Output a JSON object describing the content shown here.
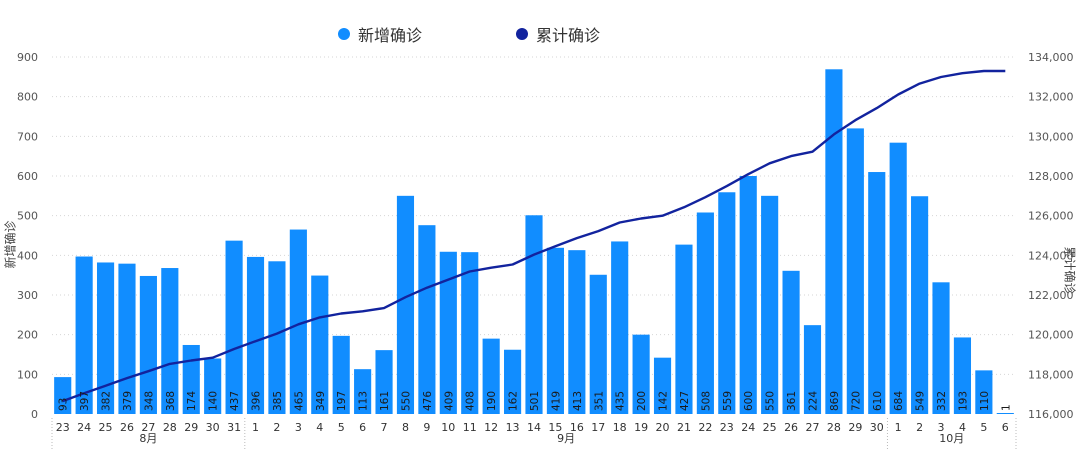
{
  "chart_data": {
    "type": "bar",
    "legend": [
      {
        "name": "新增确诊",
        "color": "#118DFF",
        "marker": "dot"
      },
      {
        "name": "累计确诊",
        "color": "#12239E",
        "marker": "dot"
      }
    ],
    "legend_position": "top-center",
    "categories": [
      "23",
      "24",
      "25",
      "26",
      "27",
      "28",
      "29",
      "30",
      "31",
      "1",
      "2",
      "3",
      "4",
      "5",
      "6",
      "7",
      "8",
      "9",
      "10",
      "11",
      "12",
      "13",
      "14",
      "15",
      "16",
      "17",
      "18",
      "19",
      "20",
      "21",
      "22",
      "23",
      "24",
      "25",
      "26",
      "27",
      "28",
      "29",
      "30",
      "1",
      "2",
      "3",
      "4",
      "5",
      "6"
    ],
    "months": [
      {
        "label": "8月",
        "start": 0,
        "end": 8
      },
      {
        "label": "9月",
        "start": 9,
        "end": 38
      },
      {
        "label": "10月",
        "start": 39,
        "end": 44
      }
    ],
    "series": [
      {
        "name": "新增确诊",
        "type": "bar",
        "axis": "left",
        "color": "#118DFF",
        "values": [
          93,
          397,
          382,
          379,
          348,
          368,
          174,
          140,
          437,
          396,
          385,
          465,
          349,
          197,
          113,
          161,
          550,
          476,
          409,
          408,
          190,
          162,
          501,
          419,
          413,
          351,
          435,
          200,
          142,
          427,
          508,
          559,
          600,
          550,
          361,
          224,
          869,
          720,
          610,
          684,
          549,
          332,
          193,
          110,
          1
        ]
      },
      {
        "name": "累计确诊",
        "type": "line",
        "axis": "right",
        "color": "#12239E",
        "values": [
          116650,
          117047,
          117429,
          117808,
          118156,
          118524,
          118698,
          118838,
          119275,
          119671,
          120056,
          120521,
          120870,
          121067,
          121180,
          121341,
          121891,
          122367,
          122776,
          123184,
          123374,
          123536,
          124037,
          124456,
          124869,
          125220,
          125655,
          125855,
          125997,
          126424,
          126932,
          127491,
          128091,
          128641,
          129002,
          129226,
          130095,
          130815,
          131425,
          132109,
          132658,
          132990,
          133183,
          133293,
          133294
        ]
      }
    ],
    "y_left": {
      "label": "新增确诊",
      "min": 0,
      "max": 900,
      "ticks": [
        0,
        100,
        200,
        300,
        400,
        500,
        600,
        700,
        800,
        900
      ],
      "tick_labels": [
        "0",
        "100",
        "200",
        "300",
        "400",
        "500",
        "600",
        "700",
        "800",
        "900"
      ]
    },
    "y_right": {
      "label": "累计确诊",
      "min": 116000,
      "max": 134000,
      "ticks": [
        116000,
        118000,
        120000,
        122000,
        124000,
        126000,
        128000,
        130000,
        132000,
        134000
      ],
      "tick_labels": [
        "116,000",
        "118,000",
        "120,000",
        "122,000",
        "124,000",
        "126,000",
        "128,000",
        "130,000",
        "132,000",
        "134,000"
      ]
    },
    "grid": true,
    "data_labels_on_bars": true
  }
}
